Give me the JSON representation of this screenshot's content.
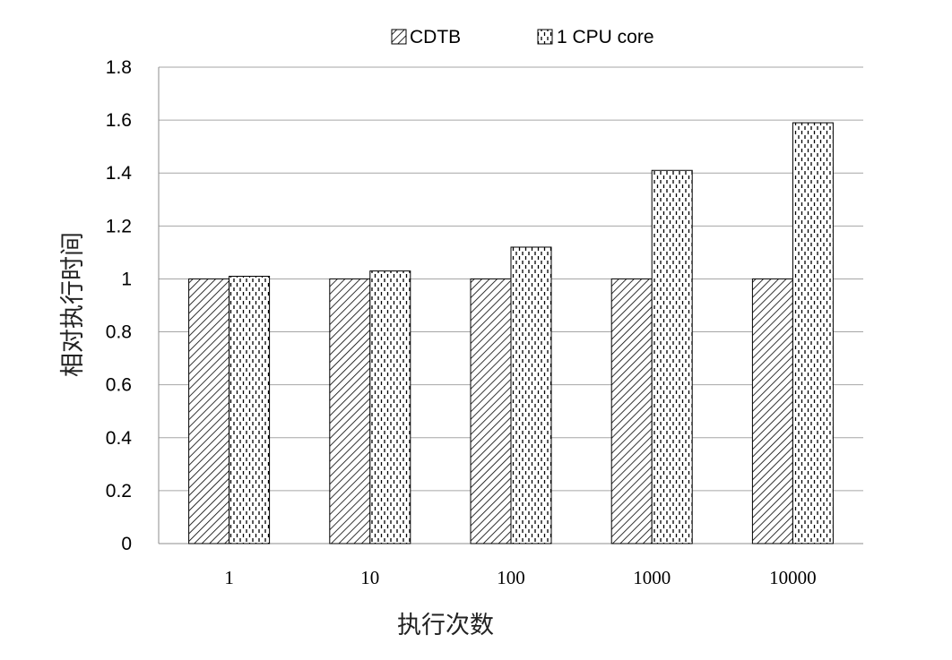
{
  "chart_data": {
    "type": "bar",
    "title": "",
    "xlabel": "执行次数",
    "ylabel": "相对执行时间",
    "categories": [
      "1",
      "10",
      "100",
      "1000",
      "10000"
    ],
    "series": [
      {
        "name": "CDTB",
        "pattern": "diagonal-hatch",
        "values": [
          1,
          1,
          1,
          1,
          1
        ]
      },
      {
        "name": "1 CPU core",
        "pattern": "dotted-dash",
        "values": [
          1.01,
          1.03,
          1.12,
          1.41,
          1.59
        ]
      }
    ],
    "ylim": [
      0,
      1.8
    ],
    "yticks": [
      "0",
      "0.2",
      "0.4",
      "0.6",
      "0.8",
      "1",
      "1.2",
      "1.4",
      "1.6",
      "1.8"
    ],
    "grid": true,
    "legend_position": "top"
  }
}
